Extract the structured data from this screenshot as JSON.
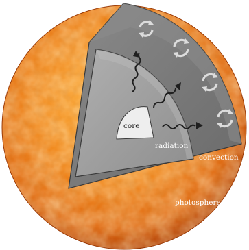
{
  "labels": {
    "core": "core",
    "radiation": "radiation",
    "convection": "convection",
    "photosphere": "photosphere"
  },
  "colors": {
    "sun_light": "#ffc24a",
    "sun_mid": "#f08a1c",
    "sun_dark": "#c9520b",
    "convection_zone": "#7a7a7a",
    "radiation_zone": "#9c9c9c",
    "core": "#e9e9e9",
    "outline": "#3a3a3a"
  },
  "icons": {
    "convection": "circular-arrows-icon",
    "radiation": "wavy-arrow-icon"
  }
}
